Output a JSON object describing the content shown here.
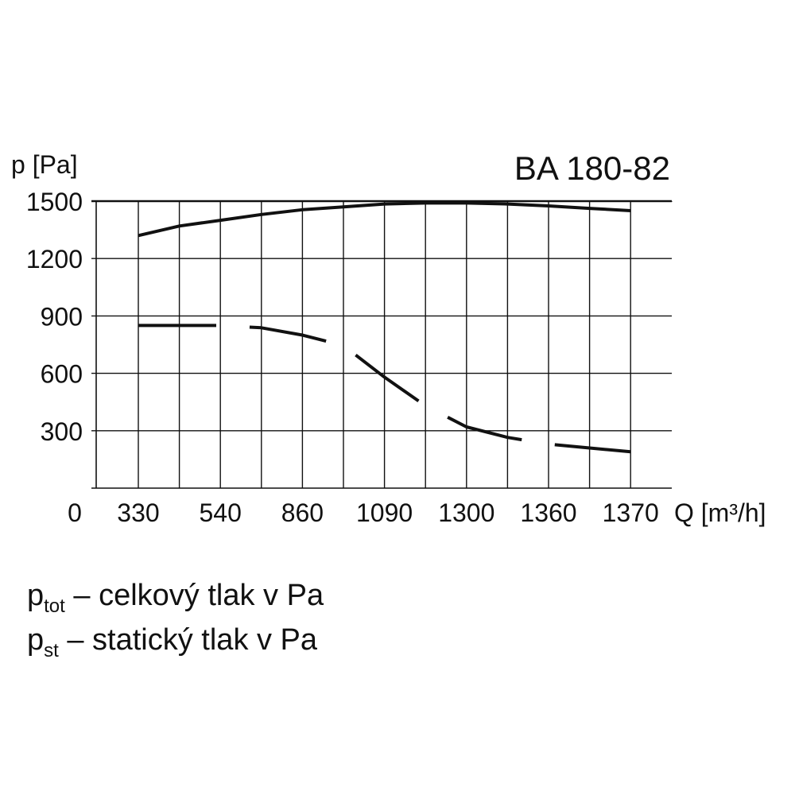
{
  "chart_data": {
    "type": "line",
    "title": "BA 180-82",
    "ylabel": "p [Pa]",
    "xlabel": "Q [m³/h]",
    "x_origin_label": "0",
    "categories": [
      "330",
      "540",
      "860",
      "1090",
      "1300",
      "1360",
      "1370"
    ],
    "yticks": [
      300,
      600,
      900,
      1200,
      1500
    ],
    "ylim": [
      0,
      1500
    ],
    "grid": true,
    "series": [
      {
        "name": "ptot",
        "style": "solid",
        "x": [
          330,
          435,
          540,
          700,
          860,
          975,
          1090,
          1195,
          1300,
          1330,
          1360,
          1365,
          1370
        ],
        "y": [
          1320,
          1370,
          1400,
          1430,
          1455,
          1470,
          1485,
          1490,
          1490,
          1485,
          1475,
          1462,
          1450
        ]
      },
      {
        "name": "pst",
        "style": "dashed",
        "x": [
          330,
          435,
          540,
          700,
          860,
          975,
          1090,
          1195,
          1300,
          1330,
          1360,
          1365,
          1370
        ],
        "y": [
          850,
          850,
          850,
          838,
          800,
          745,
          580,
          430,
          320,
          265,
          230,
          210,
          190
        ]
      }
    ]
  },
  "legend": [
    {
      "symbol": "p",
      "sub": "tot",
      "text": " – celkový tlak v Pa"
    },
    {
      "symbol": "p",
      "sub": "st",
      "text": " – statický  tlak v Pa"
    }
  ]
}
